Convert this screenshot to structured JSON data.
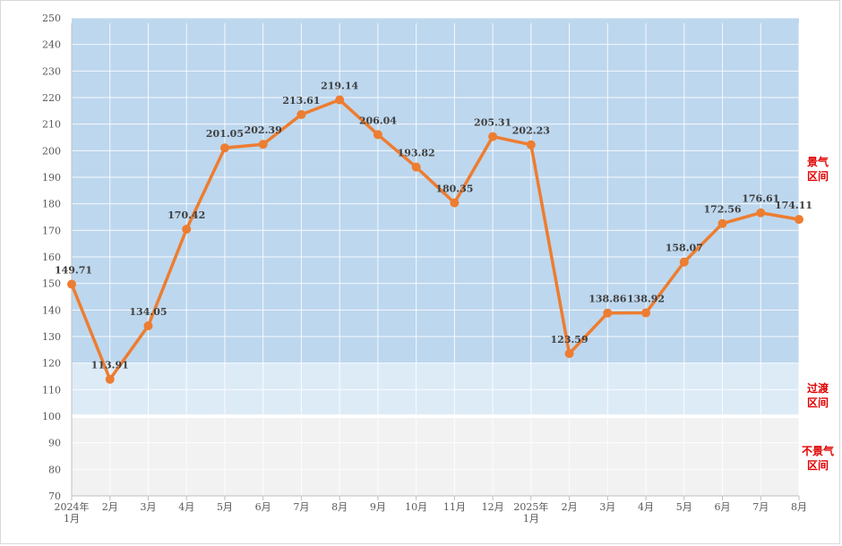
{
  "chart_data": {
    "type": "line",
    "title": "",
    "xlabel": "",
    "ylabel": "",
    "ylim": [
      70,
      250
    ],
    "yticks": [
      70,
      80,
      90,
      100,
      110,
      120,
      130,
      140,
      150,
      160,
      170,
      180,
      190,
      200,
      210,
      220,
      230,
      240,
      250
    ],
    "categories": [
      [
        "2024年",
        "1月"
      ],
      [
        "2月"
      ],
      [
        "3月"
      ],
      [
        "4月"
      ],
      [
        "5月"
      ],
      [
        "6月"
      ],
      [
        "7月"
      ],
      [
        "8月"
      ],
      [
        "9月"
      ],
      [
        "10月"
      ],
      [
        "11月"
      ],
      [
        "12月"
      ],
      [
        "2025年",
        "1月"
      ],
      [
        "2月"
      ],
      [
        "3月"
      ],
      [
        "4月"
      ],
      [
        "5月"
      ],
      [
        "6月"
      ],
      [
        "7月"
      ],
      [
        "8月"
      ]
    ],
    "series": [
      {
        "values": [
          149.71,
          113.91,
          134.05,
          170.42,
          201.05,
          202.39,
          213.61,
          219.14,
          206.04,
          193.82,
          180.35,
          205.31,
          202.23,
          123.59,
          138.86,
          138.92,
          158.07,
          172.56,
          176.61,
          174.11
        ],
        "labels": [
          "149.71",
          "113.91",
          "134.05",
          "170.42",
          "201.05",
          "202.39",
          "213.61",
          "219.14",
          "206.04",
          "193.82",
          "180.35",
          "205.31",
          "202.23",
          "123.59",
          "138.86",
          "138.92",
          "158.07",
          "172.56",
          "176.61",
          "174.11"
        ],
        "color": "#ed7d31"
      }
    ],
    "zones": [
      {
        "label": [
          "景气",
          "区间"
        ],
        "from": 120,
        "to": 250,
        "color": "#bdd7ee"
      },
      {
        "label": [
          "过渡",
          "区间"
        ],
        "from": 100,
        "to": 120,
        "color": "#ddebf7"
      },
      {
        "label": [
          "不景气",
          "区间"
        ],
        "from": 70,
        "to": 100,
        "color": "#f2f2f2"
      }
    ],
    "zone_label_color": "#e00000",
    "grid": true
  }
}
